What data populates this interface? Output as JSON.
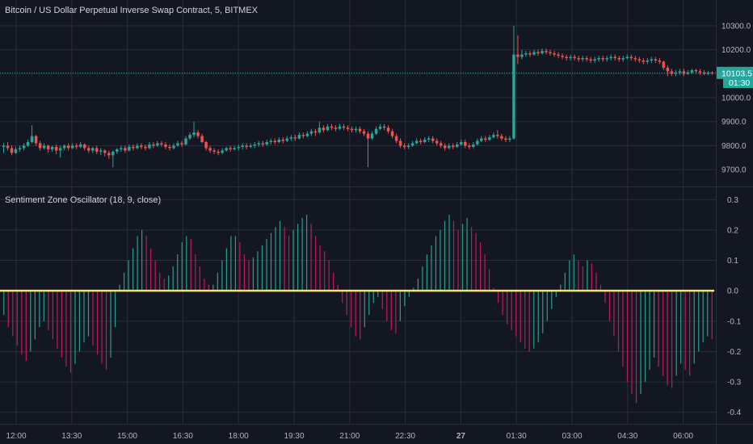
{
  "colors": {
    "background": "#131722",
    "grid": "#2a2e39",
    "up": "#26a69a",
    "down": "#ef5350",
    "hist_up": "#2a9d8f",
    "hist_down": "#c2185b",
    "zero_line": "#f5e663",
    "badge": "#26a69a",
    "divider": "#2a2e39"
  },
  "chart_data": [
    {
      "type": "candlestick",
      "title": "Bitcoin / US Dollar Perpetual Inverse Swap Contract, 5, BITMEX",
      "ylim": [
        9640,
        10340
      ],
      "yticks": [
        "10300.0",
        "10200.0",
        "10100.0",
        "10000.0",
        "9900.0",
        "9800.0",
        "9700.0"
      ],
      "ytick_values": [
        10300,
        10200,
        10100,
        10000,
        9900,
        9800,
        9700
      ],
      "last_price": "10103.5",
      "countdown": "01:30",
      "candles": [
        [
          9795,
          9800,
          9770,
          9810
        ],
        [
          9800,
          9790,
          9780,
          9815
        ],
        [
          9790,
          9770,
          9760,
          9800
        ],
        [
          9770,
          9785,
          9765,
          9795
        ],
        [
          9785,
          9790,
          9775,
          9800
        ],
        [
          9790,
          9800,
          9780,
          9810
        ],
        [
          9800,
          9815,
          9795,
          9825
        ],
        [
          9815,
          9840,
          9810,
          9885
        ],
        [
          9840,
          9810,
          9800,
          9845
        ],
        [
          9810,
          9790,
          9780,
          9820
        ],
        [
          9790,
          9800,
          9785,
          9810
        ],
        [
          9800,
          9785,
          9770,
          9805
        ],
        [
          9785,
          9795,
          9775,
          9800
        ],
        [
          9795,
          9780,
          9765,
          9805
        ],
        [
          9780,
          9790,
          9750,
          9800
        ],
        [
          9790,
          9800,
          9780,
          9805
        ],
        [
          9800,
          9790,
          9780,
          9810
        ],
        [
          9790,
          9800,
          9785,
          9810
        ],
        [
          9800,
          9795,
          9785,
          9810
        ],
        [
          9795,
          9805,
          9790,
          9815
        ],
        [
          9805,
          9790,
          9780,
          9810
        ],
        [
          9790,
          9780,
          9770,
          9800
        ],
        [
          9780,
          9790,
          9770,
          9795
        ],
        [
          9790,
          9775,
          9765,
          9800
        ],
        [
          9775,
          9780,
          9760,
          9790
        ],
        [
          9780,
          9770,
          9755,
          9785
        ],
        [
          9770,
          9760,
          9745,
          9780
        ],
        [
          9760,
          9775,
          9710,
          9780
        ],
        [
          9775,
          9785,
          9765,
          9790
        ],
        [
          9785,
          9790,
          9775,
          9800
        ],
        [
          9790,
          9780,
          9770,
          9800
        ],
        [
          9780,
          9795,
          9775,
          9805
        ],
        [
          9795,
          9790,
          9780,
          9805
        ],
        [
          9790,
          9800,
          9785,
          9810
        ],
        [
          9800,
          9795,
          9785,
          9810
        ],
        [
          9795,
          9790,
          9780,
          9805
        ],
        [
          9790,
          9805,
          9785,
          9815
        ],
        [
          9805,
          9800,
          9790,
          9815
        ],
        [
          9800,
          9810,
          9795,
          9820
        ],
        [
          9810,
          9805,
          9795,
          9820
        ],
        [
          9805,
          9795,
          9785,
          9815
        ],
        [
          9795,
          9790,
          9780,
          9805
        ],
        [
          9790,
          9800,
          9785,
          9810
        ],
        [
          9800,
          9810,
          9795,
          9820
        ],
        [
          9810,
          9805,
          9795,
          9820
        ],
        [
          9805,
          9830,
          9800,
          9840
        ],
        [
          9830,
          9845,
          9825,
          9855
        ],
        [
          9845,
          9855,
          9835,
          9900
        ],
        [
          9855,
          9840,
          9830,
          9865
        ],
        [
          9840,
          9815,
          9810,
          9850
        ],
        [
          9815,
          9790,
          9780,
          9820
        ],
        [
          9790,
          9780,
          9770,
          9800
        ],
        [
          9780,
          9775,
          9765,
          9790
        ],
        [
          9775,
          9770,
          9760,
          9785
        ],
        [
          9770,
          9780,
          9765,
          9790
        ],
        [
          9780,
          9790,
          9775,
          9795
        ],
        [
          9790,
          9785,
          9775,
          9800
        ],
        [
          9785,
          9790,
          9780,
          9800
        ],
        [
          9790,
          9795,
          9780,
          9805
        ],
        [
          9795,
          9800,
          9785,
          9810
        ],
        [
          9800,
          9795,
          9785,
          9810
        ],
        [
          9795,
          9800,
          9790,
          9810
        ],
        [
          9800,
          9805,
          9790,
          9815
        ],
        [
          9805,
          9810,
          9795,
          9820
        ],
        [
          9810,
          9805,
          9795,
          9820
        ],
        [
          9805,
          9815,
          9800,
          9825
        ],
        [
          9815,
          9820,
          9805,
          9830
        ],
        [
          9820,
          9815,
          9805,
          9830
        ],
        [
          9815,
          9825,
          9810,
          9835
        ],
        [
          9825,
          9820,
          9810,
          9835
        ],
        [
          9820,
          9830,
          9815,
          9840
        ],
        [
          9830,
          9835,
          9820,
          9845
        ],
        [
          9835,
          9830,
          9820,
          9845
        ],
        [
          9830,
          9845,
          9825,
          9855
        ],
        [
          9845,
          9840,
          9830,
          9855
        ],
        [
          9840,
          9850,
          9835,
          9860
        ],
        [
          9850,
          9860,
          9840,
          9870
        ],
        [
          9860,
          9855,
          9840,
          9870
        ],
        [
          9855,
          9875,
          9850,
          9900
        ],
        [
          9875,
          9865,
          9855,
          9885
        ],
        [
          9865,
          9880,
          9860,
          9890
        ],
        [
          9880,
          9875,
          9865,
          9890
        ],
        [
          9875,
          9870,
          9860,
          9885
        ],
        [
          9870,
          9880,
          9865,
          9890
        ],
        [
          9880,
          9875,
          9865,
          9890
        ],
        [
          9875,
          9870,
          9860,
          9885
        ],
        [
          9870,
          9865,
          9855,
          9880
        ],
        [
          9865,
          9870,
          9855,
          9880
        ],
        [
          9870,
          9860,
          9850,
          9880
        ],
        [
          9860,
          9850,
          9840,
          9870
        ],
        [
          9850,
          9830,
          9710,
          9860
        ],
        [
          9830,
          9850,
          9825,
          9860
        ],
        [
          9850,
          9870,
          9845,
          9880
        ],
        [
          9870,
          9880,
          9865,
          9890
        ],
        [
          9880,
          9875,
          9865,
          9890
        ],
        [
          9875,
          9860,
          9850,
          9885
        ],
        [
          9860,
          9840,
          9830,
          9870
        ],
        [
          9840,
          9820,
          9810,
          9850
        ],
        [
          9820,
          9800,
          9790,
          9830
        ],
        [
          9800,
          9795,
          9785,
          9810
        ],
        [
          9795,
          9800,
          9785,
          9810
        ],
        [
          9800,
          9810,
          9795,
          9820
        ],
        [
          9810,
          9820,
          9805,
          9830
        ],
        [
          9820,
          9815,
          9805,
          9830
        ],
        [
          9815,
          9825,
          9810,
          9835
        ],
        [
          9825,
          9830,
          9815,
          9840
        ],
        [
          9830,
          9820,
          9810,
          9840
        ],
        [
          9820,
          9810,
          9800,
          9830
        ],
        [
          9810,
          9800,
          9790,
          9820
        ],
        [
          9800,
          9790,
          9780,
          9810
        ],
        [
          9790,
          9800,
          9785,
          9810
        ],
        [
          9800,
          9795,
          9785,
          9810
        ],
        [
          9795,
          9805,
          9790,
          9815
        ],
        [
          9805,
          9815,
          9800,
          9825
        ],
        [
          9815,
          9800,
          9790,
          9825
        ],
        [
          9800,
          9795,
          9785,
          9810
        ],
        [
          9795,
          9805,
          9790,
          9815
        ],
        [
          9805,
          9820,
          9800,
          9830
        ],
        [
          9820,
          9830,
          9815,
          9840
        ],
        [
          9830,
          9825,
          9815,
          9840
        ],
        [
          9825,
          9835,
          9820,
          9845
        ],
        [
          9835,
          9845,
          9830,
          9855
        ],
        [
          9845,
          9840,
          9830,
          9865
        ],
        [
          9840,
          9830,
          9820,
          9850
        ],
        [
          9830,
          9825,
          9815,
          9840
        ],
        [
          9825,
          9830,
          9815,
          9840
        ],
        [
          9830,
          10180,
          9825,
          10300
        ],
        [
          10180,
          10170,
          10140,
          10260
        ],
        [
          10170,
          10180,
          10160,
          10200
        ],
        [
          10180,
          10185,
          10170,
          10195
        ],
        [
          10185,
          10180,
          10170,
          10195
        ],
        [
          10180,
          10190,
          10175,
          10200
        ],
        [
          10190,
          10185,
          10175,
          10200
        ],
        [
          10185,
          10195,
          10180,
          10205
        ],
        [
          10195,
          10190,
          10180,
          10205
        ],
        [
          10190,
          10185,
          10175,
          10200
        ],
        [
          10185,
          10180,
          10170,
          10195
        ],
        [
          10180,
          10175,
          10165,
          10190
        ],
        [
          10175,
          10170,
          10160,
          10185
        ],
        [
          10170,
          10165,
          10155,
          10180
        ],
        [
          10165,
          10170,
          10155,
          10180
        ],
        [
          10170,
          10165,
          10155,
          10180
        ],
        [
          10165,
          10160,
          10150,
          10175
        ],
        [
          10160,
          10165,
          10150,
          10175
        ],
        [
          10165,
          10160,
          10150,
          10175
        ],
        [
          10160,
          10155,
          10145,
          10170
        ],
        [
          10155,
          10160,
          10145,
          10170
        ],
        [
          10160,
          10165,
          10150,
          10175
        ],
        [
          10165,
          10160,
          10150,
          10175
        ],
        [
          10160,
          10165,
          10150,
          10175
        ],
        [
          10165,
          10170,
          10155,
          10180
        ],
        [
          10170,
          10165,
          10155,
          10180
        ],
        [
          10165,
          10160,
          10150,
          10175
        ],
        [
          10160,
          10165,
          10150,
          10175
        ],
        [
          10165,
          10170,
          10160,
          10180
        ],
        [
          10170,
          10165,
          10155,
          10180
        ],
        [
          10165,
          10160,
          10150,
          10175
        ],
        [
          10160,
          10155,
          10145,
          10170
        ],
        [
          10155,
          10150,
          10140,
          10165
        ],
        [
          10150,
          10155,
          10140,
          10165
        ],
        [
          10155,
          10160,
          10145,
          10170
        ],
        [
          10160,
          10155,
          10145,
          10170
        ],
        [
          10155,
          10150,
          10140,
          10165
        ],
        [
          10150,
          10125,
          10115,
          10155
        ],
        [
          10125,
          10110,
          10090,
          10135
        ],
        [
          10110,
          10100,
          10090,
          10120
        ],
        [
          10100,
          10105,
          10090,
          10115
        ],
        [
          10105,
          10110,
          10095,
          10120
        ],
        [
          10110,
          10100,
          10090,
          10120
        ],
        [
          10100,
          10105,
          10095,
          10115
        ],
        [
          10105,
          10115,
          10100,
          10120
        ],
        [
          10115,
          10110,
          10100,
          10120
        ],
        [
          10110,
          10105,
          10095,
          10120
        ],
        [
          10105,
          10100,
          10095,
          10115
        ],
        [
          10100,
          10105,
          10095,
          10110
        ],
        [
          10105,
          10103.5,
          10095,
          10110
        ]
      ]
    },
    {
      "type": "histogram",
      "title": "Sentiment Zone Oscillator (18, 9, close)",
      "ylim": [
        -0.43,
        0.33
      ],
      "yticks": [
        "0.3",
        "0.2",
        "0.1",
        "0.0",
        "-0.1",
        "-0.2",
        "-0.3",
        "-0.4"
      ],
      "ytick_values": [
        0.3,
        0.2,
        0.1,
        0.0,
        -0.1,
        -0.2,
        -0.3,
        -0.4
      ],
      "zero_line": 0.0,
      "values": [
        -0.08,
        -0.12,
        -0.15,
        -0.18,
        -0.21,
        -0.23,
        -0.2,
        -0.16,
        -0.12,
        -0.1,
        -0.13,
        -0.16,
        -0.19,
        -0.22,
        -0.25,
        -0.27,
        -0.24,
        -0.2,
        -0.17,
        -0.15,
        -0.18,
        -0.21,
        -0.24,
        -0.26,
        -0.22,
        -0.12,
        0.02,
        0.06,
        0.1,
        0.14,
        0.18,
        0.2,
        0.18,
        0.14,
        0.1,
        0.06,
        0.04,
        0.05,
        0.08,
        0.12,
        0.16,
        0.18,
        0.17,
        0.12,
        0.08,
        0.04,
        0.02,
        0.02,
        0.06,
        0.1,
        0.14,
        0.18,
        0.18,
        0.16,
        0.12,
        0.1,
        0.11,
        0.13,
        0.15,
        0.17,
        0.19,
        0.21,
        0.23,
        0.21,
        0.18,
        0.2,
        0.22,
        0.24,
        0.25,
        0.22,
        0.18,
        0.15,
        0.13,
        0.1,
        0.06,
        0.02,
        -0.04,
        -0.08,
        -0.12,
        -0.15,
        -0.16,
        -0.12,
        -0.08,
        -0.04,
        -0.02,
        -0.06,
        -0.1,
        -0.13,
        -0.14,
        -0.1,
        -0.05,
        -0.02,
        0.01,
        0.04,
        0.08,
        0.12,
        0.15,
        0.18,
        0.2,
        0.23,
        0.25,
        0.23,
        0.2,
        0.22,
        0.24,
        0.21,
        0.19,
        0.16,
        0.12,
        0.07,
        0.01,
        -0.04,
        -0.08,
        -0.11,
        -0.13,
        -0.15,
        -0.17,
        -0.19,
        -0.2,
        -0.19,
        -0.17,
        -0.14,
        -0.1,
        -0.06,
        -0.02,
        0.02,
        0.06,
        0.1,
        0.12,
        0.1,
        0.08,
        0.1,
        0.09,
        0.06,
        0.02,
        -0.04,
        -0.1,
        -0.15,
        -0.2,
        -0.25,
        -0.3,
        -0.34,
        -0.37,
        -0.34,
        -0.3,
        -0.26,
        -0.22,
        -0.25,
        -0.28,
        -0.31,
        -0.32,
        -0.28,
        -0.24,
        -0.26,
        -0.28,
        -0.24,
        -0.2,
        -0.17,
        -0.15,
        -0.16
      ]
    }
  ],
  "time_axis": {
    "labels": [
      "12:00",
      "13:30",
      "15:00",
      "16:30",
      "18:00",
      "19:30",
      "21:00",
      "22:30",
      "27",
      "01:30",
      "03:00",
      "04:30",
      "06:00"
    ],
    "bold_label": "27"
  }
}
